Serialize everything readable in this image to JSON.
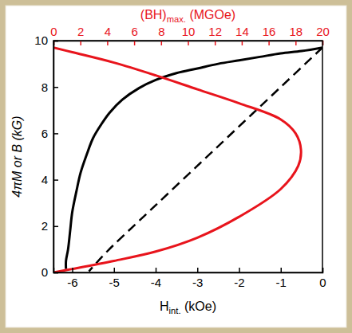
{
  "chart_data": {
    "type": "line",
    "x_label": "Hint. (kOe)",
    "y_label": "4πM or B (kG)",
    "x2_label": "(BH)max. (MGOe)",
    "xlim": [
      -6.45,
      0
    ],
    "xticks": [
      -6,
      -5,
      -4,
      -3,
      -2,
      -1,
      0
    ],
    "x2lim": [
      0,
      20
    ],
    "x2ticks": [
      0,
      2,
      4,
      6,
      8,
      10,
      12,
      14,
      16,
      18,
      20
    ],
    "ylim": [
      0,
      10
    ],
    "yticks": [
      0,
      2,
      4,
      6,
      8,
      10
    ],
    "series": [
      {
        "color": "#000000",
        "line_style": "solid",
        "x": [
          0,
          -0.5,
          -1,
          -1.5,
          -2,
          -2.5,
          -3,
          -3.5,
          -4,
          -4.4,
          -4.8,
          -5.1,
          -5.3,
          -5.5,
          -5.65,
          -5.8,
          -5.9,
          -6.0,
          -6.05,
          -6.1,
          -6.15,
          -6.15
        ],
        "values": [
          9.7,
          9.55,
          9.45,
          9.3,
          9.15,
          9.0,
          8.8,
          8.6,
          8.3,
          7.95,
          7.45,
          6.9,
          6.4,
          5.8,
          5.1,
          4.3,
          3.5,
          2.6,
          1.8,
          1.0,
          0.5,
          0.15
        ]
      },
      {
        "color": "#000000",
        "line_style": "dashed",
        "x": [
          0,
          -1,
          -2,
          -3,
          -4,
          -4.5,
          -5,
          -5.3,
          -5.5,
          -5.6
        ],
        "values": [
          9.7,
          8.0,
          6.3,
          4.6,
          2.9,
          2.05,
          1.2,
          0.65,
          0.25,
          0.05
        ]
      },
      {
        "color": "#e8141c",
        "line_style": "solid",
        "axis": "x2",
        "x": [
          0,
          1.4,
          4.5,
          7.6,
          10.7,
          13.8,
          16.9,
          18.0,
          18.4,
          18.2,
          16.9,
          13.8,
          10.7,
          7.6,
          4.5,
          1.4,
          0
        ],
        "values": [
          9.7,
          9.5,
          9.05,
          8.5,
          7.9,
          7.3,
          6.6,
          6.0,
          5.3,
          4.6,
          3.6,
          2.4,
          1.5,
          0.9,
          0.5,
          0.15,
          0
        ]
      }
    ]
  }
}
